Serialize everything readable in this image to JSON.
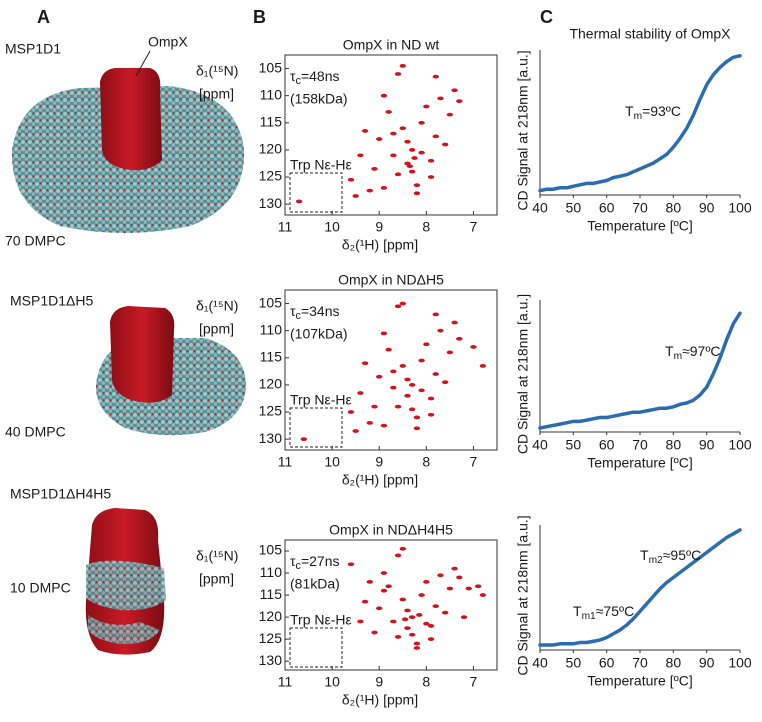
{
  "figure": {
    "panel_labels": [
      "A",
      "B",
      "C"
    ],
    "models": [
      {
        "scaffold": "MSP1D1",
        "protein_label": "OmpX",
        "lipids": "70 DMPC"
      },
      {
        "scaffold": "MSP1D1ΔH5",
        "lipids": "40 DMPC"
      },
      {
        "scaffold": "MSP1D1ΔH4H5",
        "lipids": "10 DMPC"
      }
    ]
  },
  "chart_data": [
    {
      "type": "scatter",
      "title": "OmpX in ND wt",
      "tau": [
        "τ",
        "c",
        "=48ns"
      ],
      "mass": "(158kDa)",
      "region_label": "Trp Nε-Hε",
      "x_label": "δ₂(¹H) [ppm]",
      "y_label": [
        "δ₁(¹⁵N)",
        "[ppm]"
      ],
      "color": "#d0141e",
      "xlim": [
        11,
        6.5
      ],
      "xticks": [
        11,
        10,
        9,
        8,
        7
      ],
      "ylim": [
        102.5,
        132
      ],
      "yticks": [
        105,
        110,
        115,
        120,
        125,
        130
      ],
      "x": [
        10.7,
        9.6,
        9.4,
        9.3,
        9.1,
        9.0,
        8.9,
        8.8,
        8.7,
        8.6,
        8.5,
        8.4,
        8.4,
        8.3,
        8.3,
        8.2,
        8.1,
        8.0,
        7.9,
        7.8,
        7.7,
        7.6,
        7.5,
        7.4,
        8.6,
        8.9,
        8.2,
        7.9,
        9.2,
        8.5,
        7.3,
        8.1,
        8.7,
        9.5,
        7.8,
        8.35,
        8.25
      ],
      "y": [
        129.5,
        125.5,
        121,
        116.5,
        123.5,
        118,
        127,
        113,
        121,
        124.5,
        116,
        122.5,
        118.5,
        124,
        120,
        128,
        115,
        112,
        122,
        117.5,
        110.5,
        119,
        113.5,
        109,
        106,
        110,
        126.5,
        125,
        127.5,
        104.5,
        111,
        120.5,
        117,
        128.5,
        106.5,
        123,
        121.5
      ]
    },
    {
      "type": "scatter",
      "title": "OmpX in NDΔH5",
      "tau": [
        "τ",
        "c",
        "=34ns"
      ],
      "mass": "(107kDa)",
      "region_label": "Trp Nε-Hε",
      "x_label": "δ₂(¹H) [ppm]",
      "y_label": [
        "δ₁(¹⁵N)",
        "[ppm]"
      ],
      "color": "#d0141e",
      "xlim": [
        11,
        6.5
      ],
      "xticks": [
        11,
        10,
        9,
        8,
        7
      ],
      "ylim": [
        102.5,
        132
      ],
      "yticks": [
        105,
        110,
        115,
        120,
        125,
        130
      ],
      "x": [
        10.6,
        9.6,
        9.4,
        9.3,
        9.1,
        9.0,
        8.9,
        8.8,
        8.7,
        8.6,
        8.5,
        8.4,
        8.4,
        8.3,
        8.3,
        8.2,
        8.1,
        8.0,
        7.9,
        7.8,
        7.7,
        7.6,
        7.5,
        7.4,
        8.6,
        8.9,
        8.2,
        7.9,
        9.2,
        8.5,
        7.3,
        8.1,
        8.7,
        9.5,
        7.8,
        7.0,
        6.8
      ],
      "y": [
        130,
        125,
        121.5,
        116,
        124,
        118.5,
        127.5,
        113.5,
        120.5,
        124,
        116.5,
        122,
        119,
        124.5,
        120,
        128,
        115.5,
        112.5,
        122.5,
        118,
        110,
        119.5,
        114,
        108.5,
        105.5,
        110.5,
        126,
        125.5,
        127,
        105,
        111.5,
        121,
        117.5,
        128.5,
        107,
        113,
        116.5
      ]
    },
    {
      "type": "scatter",
      "title": "OmpX in NDΔH4H5",
      "tau": [
        "τ",
        "c",
        "=27ns"
      ],
      "mass": "(81kDa)",
      "region_label": "Trp Nε-Hε",
      "x_label": "δ₂(¹H) [ppm]",
      "y_label": [
        "δ₁(¹⁵N)",
        "[ppm]"
      ],
      "color": "#d0141e",
      "xlim": [
        11,
        6.5
      ],
      "xticks": [
        11,
        10,
        9,
        8,
        7
      ],
      "ylim": [
        102.5,
        132
      ],
      "yticks": [
        105,
        110,
        115,
        120,
        125,
        130
      ],
      "x": [
        9.6,
        9.4,
        9.3,
        9.1,
        9.0,
        8.9,
        8.8,
        8.7,
        8.6,
        8.5,
        8.4,
        8.4,
        8.3,
        8.3,
        8.2,
        8.1,
        8.0,
        7.9,
        7.8,
        7.7,
        7.6,
        7.5,
        7.4,
        8.6,
        8.9,
        8.2,
        7.9,
        9.2,
        8.5,
        7.3,
        7.1,
        6.9,
        6.8,
        7.2,
        8.0,
        8.45,
        8.15
      ],
      "y": [
        108,
        121,
        116.5,
        123.5,
        118,
        114,
        113,
        121,
        124.5,
        116,
        122.5,
        118.5,
        124,
        120,
        126,
        115,
        112,
        122,
        117.5,
        110.5,
        119,
        113.5,
        109,
        106,
        110,
        127,
        125,
        112,
        104.5,
        111,
        113.5,
        113,
        115,
        120,
        121.5,
        120.5,
        119.5
      ]
    },
    {
      "type": "line",
      "title": "Thermal stability of OmpX",
      "annotations": [
        [
          "T",
          "m",
          "=93ºC"
        ]
      ],
      "x_label": "Temperature [ºC]",
      "y_label": "CD Signal at 218nm [a.u.]",
      "color": "#2b6cb0",
      "xlim": [
        40,
        100
      ],
      "xticks": [
        40,
        50,
        60,
        70,
        80,
        90,
        100
      ],
      "ylim": [
        0,
        1
      ],
      "x": [
        40,
        42,
        44,
        46,
        48,
        50,
        52,
        54,
        56,
        58,
        60,
        62,
        64,
        66,
        68,
        70,
        72,
        74,
        76,
        78,
        80,
        82,
        84,
        86,
        88,
        90,
        92,
        94,
        96,
        98,
        100
      ],
      "values": [
        0.03,
        0.04,
        0.04,
        0.05,
        0.05,
        0.06,
        0.07,
        0.08,
        0.08,
        0.09,
        0.1,
        0.12,
        0.13,
        0.14,
        0.16,
        0.18,
        0.2,
        0.22,
        0.25,
        0.28,
        0.33,
        0.39,
        0.46,
        0.55,
        0.66,
        0.76,
        0.83,
        0.88,
        0.92,
        0.95,
        0.96
      ]
    },
    {
      "type": "line",
      "annotations": [
        [
          "T",
          "m",
          "≈97ºC"
        ]
      ],
      "x_label": "Temperature [ºC]",
      "y_label": "CD Signal at 218nm [a.u.]",
      "color": "#2b6cb0",
      "xlim": [
        40,
        100
      ],
      "xticks": [
        40,
        50,
        60,
        70,
        80,
        90,
        100
      ],
      "ylim": [
        0,
        1
      ],
      "x": [
        40,
        42,
        44,
        46,
        48,
        50,
        52,
        54,
        56,
        58,
        60,
        62,
        64,
        66,
        68,
        70,
        72,
        74,
        76,
        78,
        80,
        82,
        84,
        86,
        88,
        90,
        92,
        94,
        96,
        98,
        100
      ],
      "values": [
        0.03,
        0.04,
        0.05,
        0.06,
        0.07,
        0.08,
        0.08,
        0.09,
        0.1,
        0.11,
        0.11,
        0.12,
        0.13,
        0.14,
        0.15,
        0.15,
        0.16,
        0.17,
        0.18,
        0.18,
        0.19,
        0.21,
        0.22,
        0.24,
        0.28,
        0.34,
        0.44,
        0.56,
        0.7,
        0.82,
        0.9
      ]
    },
    {
      "type": "line",
      "annotations": [
        [
          "T",
          "m2",
          "≈95ºC"
        ],
        [
          "T",
          "m1",
          "≈75ºC"
        ]
      ],
      "x_label": "Temperature [ºC]",
      "y_label": "CD Signal at 218nm [a.u.]",
      "color": "#2b6cb0",
      "xlim": [
        40,
        100
      ],
      "xticks": [
        40,
        50,
        60,
        70,
        80,
        90,
        100
      ],
      "ylim": [
        0,
        1
      ],
      "x": [
        40,
        42,
        44,
        46,
        48,
        50,
        52,
        54,
        56,
        58,
        60,
        62,
        64,
        66,
        68,
        70,
        72,
        74,
        76,
        78,
        80,
        82,
        84,
        86,
        88,
        90,
        92,
        94,
        96,
        98,
        100
      ],
      "values": [
        0.04,
        0.04,
        0.04,
        0.05,
        0.05,
        0.05,
        0.06,
        0.06,
        0.07,
        0.08,
        0.1,
        0.13,
        0.16,
        0.2,
        0.25,
        0.31,
        0.37,
        0.43,
        0.49,
        0.54,
        0.58,
        0.62,
        0.66,
        0.7,
        0.74,
        0.78,
        0.82,
        0.86,
        0.9,
        0.93,
        0.96
      ]
    }
  ]
}
